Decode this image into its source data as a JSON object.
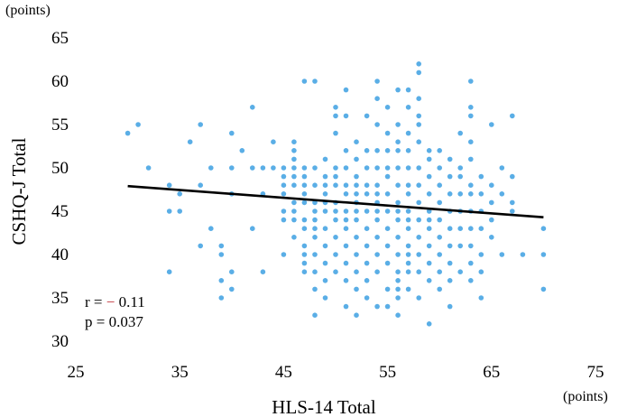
{
  "chart_data": {
    "type": "scatter",
    "xlabel": "HLS-14 Total",
    "ylabel": "CSHQ-J Total",
    "x_unit": "(points)",
    "y_unit": "(points)",
    "xlim": [
      25,
      75
    ],
    "ylim": [
      30,
      65
    ],
    "xticks": [
      25,
      35,
      45,
      55,
      65,
      75
    ],
    "yticks": [
      30,
      35,
      40,
      45,
      50,
      55,
      60,
      65
    ],
    "grid": false,
    "point_color": "#5aaee6",
    "line_color": "#000000",
    "minus_color": "#c0313a",
    "regression_line": {
      "x": [
        30,
        70
      ],
      "y": [
        47.9,
        44.3
      ]
    },
    "stats": {
      "r_prefix": "r = ",
      "r_sign": "−",
      "r_value": " 0.11",
      "p_text": "p = 0.037"
    },
    "points": [
      [
        30,
        54
      ],
      [
        31,
        55
      ],
      [
        32,
        50
      ],
      [
        34,
        48
      ],
      [
        34,
        45
      ],
      [
        34,
        38
      ],
      [
        35,
        47
      ],
      [
        35,
        45
      ],
      [
        36,
        53
      ],
      [
        37,
        55
      ],
      [
        37,
        48
      ],
      [
        37,
        41
      ],
      [
        38,
        50
      ],
      [
        38,
        43
      ],
      [
        39,
        41
      ],
      [
        39,
        40
      ],
      [
        39,
        37
      ],
      [
        39,
        35
      ],
      [
        40,
        54
      ],
      [
        40,
        50
      ],
      [
        40,
        47
      ],
      [
        40,
        38
      ],
      [
        40,
        36
      ],
      [
        41,
        52
      ],
      [
        42,
        57
      ],
      [
        42,
        50
      ],
      [
        42,
        43
      ],
      [
        43,
        50
      ],
      [
        43,
        47
      ],
      [
        43,
        38
      ],
      [
        44,
        53
      ],
      [
        44,
        50
      ],
      [
        45,
        50
      ],
      [
        45,
        49
      ],
      [
        45,
        48
      ],
      [
        45,
        47
      ],
      [
        45,
        45
      ],
      [
        45,
        44
      ],
      [
        45,
        40
      ],
      [
        46,
        53
      ],
      [
        46,
        52
      ],
      [
        46,
        51
      ],
      [
        46,
        50
      ],
      [
        46,
        49
      ],
      [
        46,
        48
      ],
      [
        46,
        46
      ],
      [
        46,
        45
      ],
      [
        46,
        44
      ],
      [
        46,
        42
      ],
      [
        47,
        60
      ],
      [
        47,
        50
      ],
      [
        47,
        49
      ],
      [
        47,
        48
      ],
      [
        47,
        47
      ],
      [
        47,
        46
      ],
      [
        47,
        44
      ],
      [
        47,
        43
      ],
      [
        47,
        41
      ],
      [
        47,
        40
      ],
      [
        47,
        39
      ],
      [
        47,
        38
      ],
      [
        48,
        60
      ],
      [
        48,
        50
      ],
      [
        48,
        48
      ],
      [
        48,
        46
      ],
      [
        48,
        45
      ],
      [
        48,
        44
      ],
      [
        48,
        43
      ],
      [
        48,
        42
      ],
      [
        48,
        40
      ],
      [
        48,
        38
      ],
      [
        48,
        36
      ],
      [
        48,
        33
      ],
      [
        49,
        51
      ],
      [
        49,
        49
      ],
      [
        49,
        48
      ],
      [
        49,
        47
      ],
      [
        49,
        46
      ],
      [
        49,
        45
      ],
      [
        49,
        43
      ],
      [
        49,
        41
      ],
      [
        49,
        39
      ],
      [
        49,
        37
      ],
      [
        49,
        35
      ],
      [
        50,
        57
      ],
      [
        50,
        56
      ],
      [
        50,
        54
      ],
      [
        50,
        50
      ],
      [
        50,
        49
      ],
      [
        50,
        48
      ],
      [
        50,
        46
      ],
      [
        50,
        45
      ],
      [
        50,
        44
      ],
      [
        50,
        42
      ],
      [
        50,
        40
      ],
      [
        50,
        38
      ],
      [
        51,
        59
      ],
      [
        51,
        56
      ],
      [
        51,
        52
      ],
      [
        51,
        50
      ],
      [
        51,
        48
      ],
      [
        51,
        47
      ],
      [
        51,
        45
      ],
      [
        51,
        44
      ],
      [
        51,
        43
      ],
      [
        51,
        41
      ],
      [
        51,
        39
      ],
      [
        51,
        37
      ],
      [
        51,
        34
      ],
      [
        52,
        53
      ],
      [
        52,
        51
      ],
      [
        52,
        49
      ],
      [
        52,
        48
      ],
      [
        52,
        47
      ],
      [
        52,
        46
      ],
      [
        52,
        45
      ],
      [
        52,
        44
      ],
      [
        52,
        42
      ],
      [
        52,
        40
      ],
      [
        52,
        38
      ],
      [
        52,
        36
      ],
      [
        52,
        33
      ],
      [
        53,
        56
      ],
      [
        53,
        52
      ],
      [
        53,
        50
      ],
      [
        53,
        48
      ],
      [
        53,
        47
      ],
      [
        53,
        45
      ],
      [
        53,
        43
      ],
      [
        53,
        41
      ],
      [
        53,
        39
      ],
      [
        53,
        37
      ],
      [
        53,
        35
      ],
      [
        54,
        60
      ],
      [
        54,
        58
      ],
      [
        54,
        55
      ],
      [
        54,
        52
      ],
      [
        54,
        50
      ],
      [
        54,
        48
      ],
      [
        54,
        47
      ],
      [
        54,
        46
      ],
      [
        54,
        45
      ],
      [
        54,
        44
      ],
      [
        54,
        42
      ],
      [
        54,
        40
      ],
      [
        54,
        38
      ],
      [
        54,
        34
      ],
      [
        55,
        57
      ],
      [
        55,
        54
      ],
      [
        55,
        52
      ],
      [
        55,
        50
      ],
      [
        55,
        49
      ],
      [
        55,
        47
      ],
      [
        55,
        45
      ],
      [
        55,
        43
      ],
      [
        55,
        41
      ],
      [
        55,
        39
      ],
      [
        55,
        36
      ],
      [
        55,
        34
      ],
      [
        56,
        59
      ],
      [
        56,
        55
      ],
      [
        56,
        53
      ],
      [
        56,
        52
      ],
      [
        56,
        50
      ],
      [
        56,
        48
      ],
      [
        56,
        46
      ],
      [
        56,
        45
      ],
      [
        56,
        44
      ],
      [
        56,
        42
      ],
      [
        56,
        40
      ],
      [
        56,
        38
      ],
      [
        56,
        37
      ],
      [
        56,
        36
      ],
      [
        56,
        35
      ],
      [
        56,
        33
      ],
      [
        57,
        59
      ],
      [
        57,
        57
      ],
      [
        57,
        54
      ],
      [
        57,
        52
      ],
      [
        57,
        50
      ],
      [
        57,
        48
      ],
      [
        57,
        47
      ],
      [
        57,
        45
      ],
      [
        57,
        44
      ],
      [
        57,
        43
      ],
      [
        57,
        41
      ],
      [
        57,
        40
      ],
      [
        57,
        39
      ],
      [
        57,
        38
      ],
      [
        57,
        36
      ],
      [
        58,
        62
      ],
      [
        58,
        61
      ],
      [
        58,
        58
      ],
      [
        58,
        56
      ],
      [
        58,
        55
      ],
      [
        58,
        53
      ],
      [
        58,
        50
      ],
      [
        58,
        48
      ],
      [
        58,
        46
      ],
      [
        58,
        44
      ],
      [
        58,
        42
      ],
      [
        58,
        40
      ],
      [
        58,
        38
      ],
      [
        58,
        35
      ],
      [
        59,
        52
      ],
      [
        59,
        51
      ],
      [
        59,
        49
      ],
      [
        59,
        47
      ],
      [
        59,
        45
      ],
      [
        59,
        44
      ],
      [
        59,
        43
      ],
      [
        59,
        41
      ],
      [
        59,
        39
      ],
      [
        59,
        37
      ],
      [
        59,
        32
      ],
      [
        60,
        52
      ],
      [
        60,
        50
      ],
      [
        60,
        48
      ],
      [
        60,
        46
      ],
      [
        60,
        44
      ],
      [
        60,
        42
      ],
      [
        60,
        40
      ],
      [
        60,
        38
      ],
      [
        60,
        36
      ],
      [
        61,
        51
      ],
      [
        61,
        49
      ],
      [
        61,
        47
      ],
      [
        61,
        45
      ],
      [
        61,
        43
      ],
      [
        61,
        41
      ],
      [
        61,
        39
      ],
      [
        61,
        37
      ],
      [
        61,
        34
      ],
      [
        62,
        54
      ],
      [
        62,
        50
      ],
      [
        62,
        49
      ],
      [
        62,
        47
      ],
      [
        62,
        45
      ],
      [
        62,
        43
      ],
      [
        62,
        41
      ],
      [
        62,
        38
      ],
      [
        63,
        60
      ],
      [
        63,
        57
      ],
      [
        63,
        56
      ],
      [
        63,
        53
      ],
      [
        63,
        51
      ],
      [
        63,
        48
      ],
      [
        63,
        47
      ],
      [
        63,
        45
      ],
      [
        63,
        43
      ],
      [
        63,
        41
      ],
      [
        63,
        39
      ],
      [
        63,
        37
      ],
      [
        64,
        49
      ],
      [
        64,
        47
      ],
      [
        64,
        45
      ],
      [
        64,
        43
      ],
      [
        64,
        40
      ],
      [
        64,
        38
      ],
      [
        64,
        35
      ],
      [
        65,
        55
      ],
      [
        65,
        48
      ],
      [
        65,
        46
      ],
      [
        65,
        44
      ],
      [
        65,
        42
      ],
      [
        66,
        50
      ],
      [
        66,
        47
      ],
      [
        66,
        40
      ],
      [
        67,
        56
      ],
      [
        67,
        49
      ],
      [
        67,
        46
      ],
      [
        67,
        45
      ],
      [
        68,
        40
      ],
      [
        70,
        43
      ],
      [
        70,
        40
      ],
      [
        70,
        36
      ]
    ]
  }
}
